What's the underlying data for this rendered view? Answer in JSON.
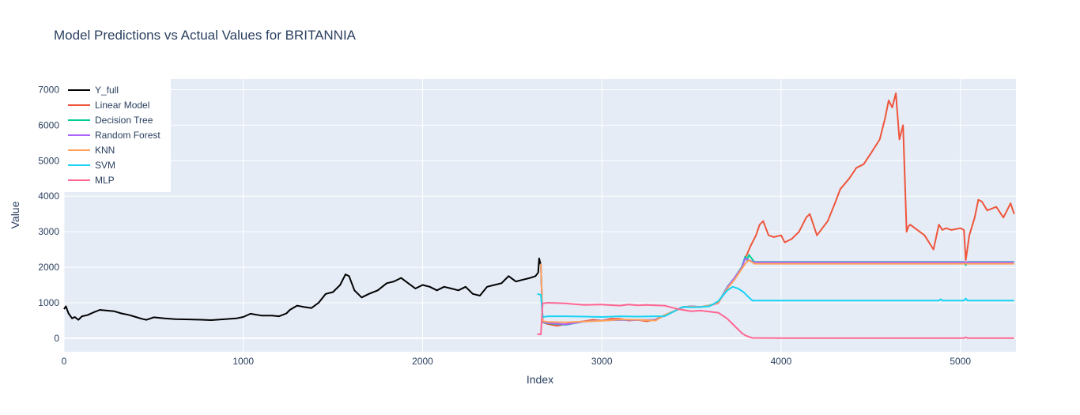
{
  "chart_data": {
    "type": "line",
    "title": "Model Predictions vs Actual Values for BRITANNIA",
    "xlabel": "Index",
    "ylabel": "Value",
    "xlim": [
      0,
      5310
    ],
    "ylim": [
      -380,
      7300
    ],
    "xticks": [
      0,
      1000,
      2000,
      3000,
      4000,
      5000
    ],
    "xtick_labels": [
      "0",
      "1000",
      "2000",
      "3000",
      "4000",
      "5000"
    ],
    "yticks": [
      0,
      1000,
      2000,
      3000,
      4000,
      5000,
      6000,
      7000
    ],
    "ytick_labels": [
      "0",
      "1000",
      "2000",
      "3000",
      "4000",
      "5000",
      "6000",
      "7000"
    ],
    "grid": true,
    "legend_position": "top-left",
    "series": [
      {
        "name": "Y_full",
        "color": "#000000",
        "x": [
          0,
          10,
          25,
          45,
          60,
          80,
          100,
          130,
          160,
          200,
          240,
          280,
          320,
          360,
          400,
          440,
          460,
          500,
          560,
          620,
          700,
          780,
          820,
          900,
          960,
          1000,
          1040,
          1100,
          1160,
          1200,
          1240,
          1260,
          1300,
          1340,
          1380,
          1420,
          1460,
          1500,
          1540,
          1570,
          1590,
          1620,
          1660,
          1700,
          1750,
          1800,
          1840,
          1880,
          1920,
          1960,
          2000,
          2040,
          2080,
          2120,
          2160,
          2200,
          2240,
          2280,
          2320,
          2360,
          2400,
          2440,
          2480,
          2520,
          2560,
          2600,
          2630,
          2645,
          2650,
          2660
        ],
        "values": [
          820,
          900,
          700,
          560,
          600,
          520,
          620,
          650,
          720,
          800,
          780,
          760,
          700,
          660,
          600,
          540,
          520,
          590,
          560,
          540,
          530,
          520,
          510,
          540,
          560,
          600,
          690,
          640,
          640,
          620,
          700,
          800,
          920,
          880,
          850,
          1000,
          1250,
          1300,
          1500,
          1800,
          1750,
          1350,
          1150,
          1250,
          1350,
          1550,
          1600,
          1700,
          1550,
          1400,
          1500,
          1450,
          1350,
          1450,
          1400,
          1350,
          1450,
          1250,
          1200,
          1450,
          1500,
          1550,
          1750,
          1600,
          1650,
          1700,
          1750,
          1850,
          2250,
          2050
        ]
      },
      {
        "name": "Linear Model",
        "color": "#EF553B",
        "x": [
          2660,
          2670,
          2700,
          2750,
          2800,
          2850,
          2900,
          2950,
          3000,
          3050,
          3100,
          3150,
          3200,
          3250,
          3300,
          3350,
          3400,
          3450,
          3500,
          3550,
          3600,
          3650,
          3700,
          3740,
          3780,
          3800,
          3830,
          3860,
          3880,
          3900,
          3930,
          3960,
          4000,
          4020,
          4060,
          4100,
          4140,
          4160,
          4200,
          4260,
          4300,
          4330,
          4380,
          4420,
          4460,
          4500,
          4550,
          4580,
          4600,
          4620,
          4640,
          4660,
          4680,
          4700,
          4710,
          4720,
          4760,
          4800,
          4850,
          4880,
          4900,
          4920,
          4950,
          5000,
          5020,
          5030,
          5050,
          5080,
          5100,
          5120,
          5150,
          5200,
          5240,
          5280,
          5300
        ],
        "values": [
          2050,
          450,
          400,
          350,
          400,
          450,
          480,
          520,
          500,
          550,
          550,
          500,
          520,
          480,
          530,
          650,
          750,
          870,
          900,
          880,
          920,
          1000,
          1400,
          1700,
          2000,
          2250,
          2600,
          2900,
          3200,
          3300,
          2900,
          2850,
          2900,
          2700,
          2800,
          3000,
          3400,
          3500,
          2900,
          3300,
          3800,
          4200,
          4500,
          4800,
          4900,
          5200,
          5600,
          6200,
          6700,
          6500,
          6900,
          5600,
          6000,
          3000,
          3150,
          3200,
          3050,
          2900,
          2500,
          3200,
          3050,
          3100,
          3050,
          3100,
          3050,
          2200,
          2900,
          3400,
          3900,
          3850,
          3600,
          3700,
          3400,
          3800,
          3500
        ]
      },
      {
        "name": "Decision Tree",
        "color": "#00CC96",
        "x": [
          2660,
          2670,
          2700,
          2800,
          2900,
          3000,
          3100,
          3200,
          3300,
          3350,
          3400,
          3450,
          3500,
          3550,
          3600,
          3650,
          3700,
          3740,
          3780,
          3800,
          3810,
          3820,
          3850,
          4000,
          4500,
          5000,
          5020,
          5030,
          5040,
          5300
        ],
        "values": [
          2100,
          450,
          420,
          380,
          470,
          500,
          520,
          510,
          520,
          650,
          760,
          880,
          900,
          880,
          930,
          1000,
          1450,
          1700,
          2000,
          2300,
          2200,
          2350,
          2150,
          2150,
          2150,
          2150,
          2150,
          2060,
          2150,
          2150
        ]
      },
      {
        "name": "Random Forest",
        "color": "#AB63FA",
        "x": [
          2660,
          2670,
          2700,
          2800,
          2900,
          3000,
          3100,
          3200,
          3300,
          3350,
          3400,
          3450,
          3500,
          3550,
          3600,
          3650,
          3700,
          3740,
          3780,
          3800,
          3820,
          3850,
          4000,
          4500,
          5000,
          5300
        ],
        "values": [
          2080,
          460,
          430,
          390,
          470,
          500,
          520,
          510,
          520,
          640,
          760,
          870,
          900,
          880,
          920,
          990,
          1440,
          1700,
          1980,
          2250,
          2200,
          2140,
          2140,
          2140,
          2140,
          2140
        ]
      },
      {
        "name": "KNN",
        "color": "#FFA15A",
        "x": [
          2660,
          2670,
          2700,
          2800,
          2900,
          3000,
          3100,
          3200,
          3300,
          3350,
          3400,
          3450,
          3500,
          3550,
          3600,
          3650,
          3700,
          3740,
          3780,
          3800,
          3820,
          3850,
          4000,
          4500,
          5000,
          5300
        ],
        "values": [
          2100,
          480,
          460,
          450,
          470,
          490,
          530,
          520,
          500,
          650,
          760,
          870,
          890,
          880,
          920,
          1000,
          1400,
          1650,
          1950,
          2100,
          2200,
          2100,
          2100,
          2100,
          2100,
          2100
        ]
      },
      {
        "name": "SVM",
        "color": "#19D3F3",
        "x": [
          2640,
          2655,
          2660,
          2670,
          2700,
          2800,
          2900,
          3000,
          3100,
          3200,
          3300,
          3350,
          3400,
          3450,
          3500,
          3550,
          3600,
          3650,
          3700,
          3730,
          3760,
          3790,
          3820,
          3840,
          4000,
          4500,
          4880,
          4890,
          4900,
          5020,
          5030,
          5040,
          5300
        ],
        "values": [
          1250,
          1230,
          1230,
          600,
          620,
          620,
          610,
          600,
          620,
          610,
          620,
          620,
          750,
          880,
          870,
          880,
          900,
          1050,
          1350,
          1450,
          1400,
          1300,
          1150,
          1060,
          1060,
          1060,
          1060,
          1100,
          1060,
          1060,
          1120,
          1060,
          1060
        ]
      },
      {
        "name": "MLP",
        "color": "#FF6692",
        "x": [
          2640,
          2655,
          2660,
          2670,
          2700,
          2800,
          2900,
          3000,
          3100,
          3150,
          3200,
          3250,
          3300,
          3350,
          3400,
          3450,
          3500,
          3550,
          3600,
          3650,
          3700,
          3750,
          3780,
          3800,
          3820,
          3840,
          4000,
          4500,
          5000,
          5020,
          5030,
          5040,
          5300
        ],
        "values": [
          120,
          110,
          110,
          980,
          1000,
          980,
          940,
          950,
          920,
          950,
          930,
          940,
          930,
          920,
          850,
          800,
          760,
          780,
          750,
          720,
          550,
          300,
          150,
          80,
          40,
          10,
          5,
          5,
          5,
          5,
          30,
          5,
          5
        ]
      }
    ]
  }
}
